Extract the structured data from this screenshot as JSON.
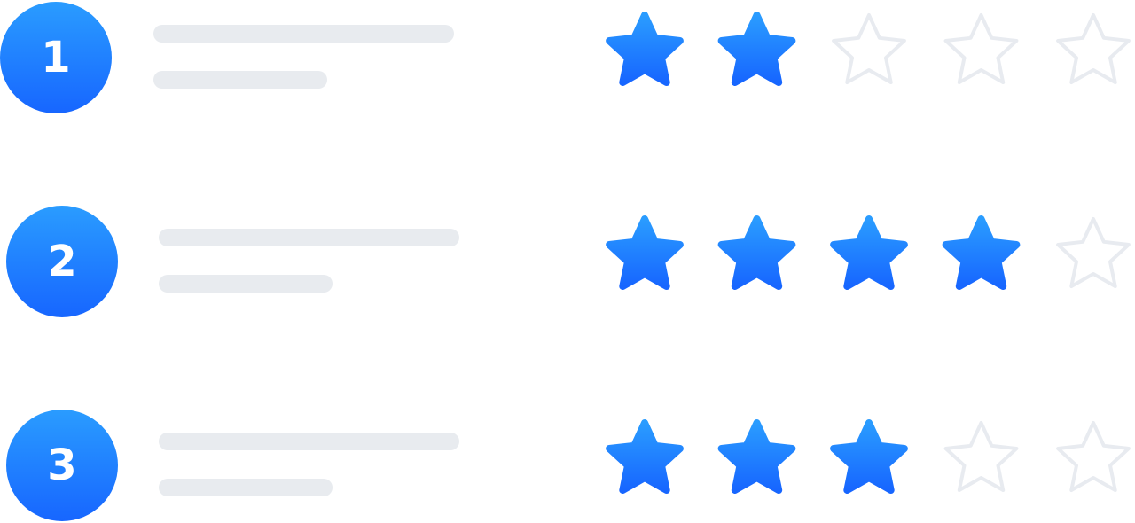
{
  "colors": {
    "accent_top": "#2a9cff",
    "accent_bottom": "#1766ff",
    "empty_star": "#e8ebf0",
    "placeholder_bar": "#e8ebef"
  },
  "max_rating": 5,
  "rows": [
    {
      "number": "1",
      "rating": 2
    },
    {
      "number": "2",
      "rating": 4
    },
    {
      "number": "3",
      "rating": 3
    }
  ]
}
